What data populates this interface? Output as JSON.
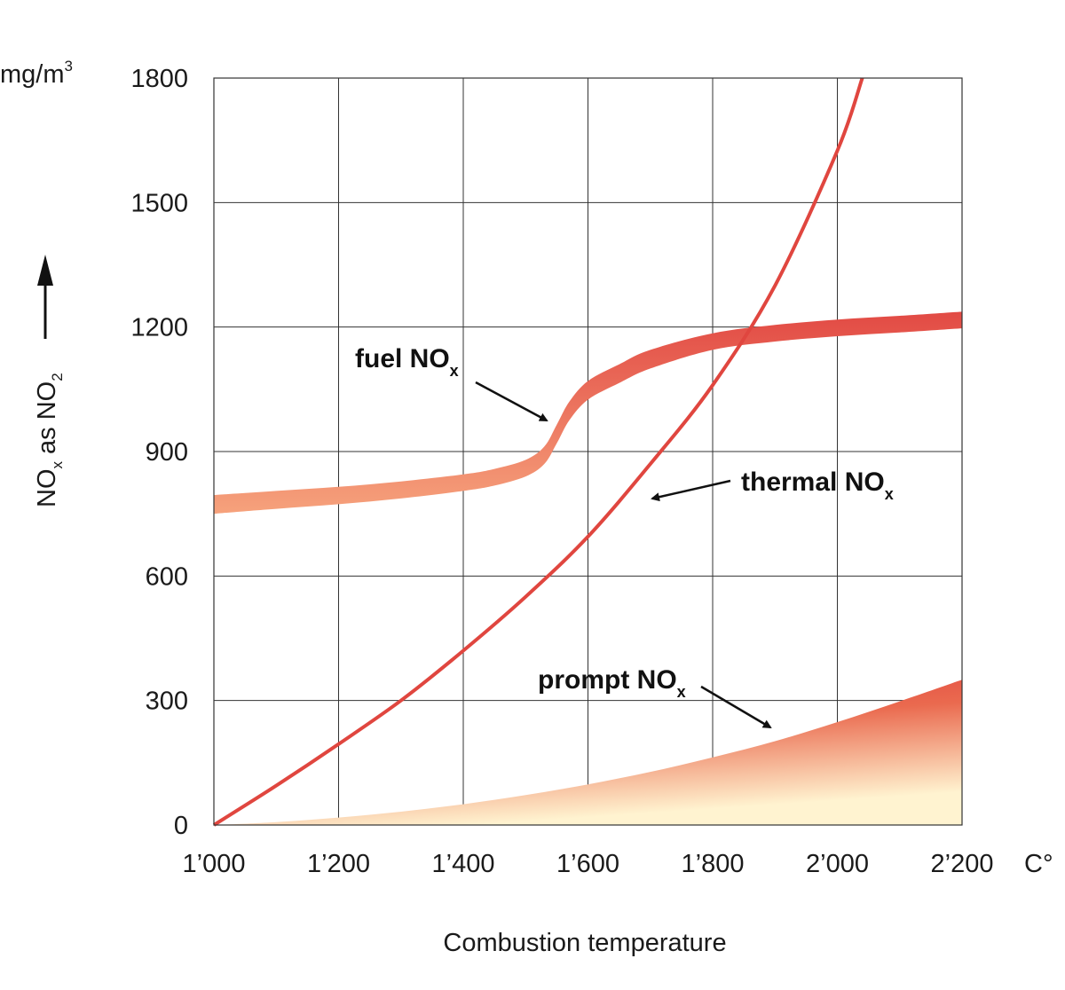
{
  "chart_data": {
    "type": "line",
    "x_ticks": [
      "1’000",
      "1’200",
      "1’400",
      "1’600",
      "1’800",
      "2’000",
      "2’200"
    ],
    "x_unit": "C°",
    "xlabel": "Combustion temperature",
    "xlim": [
      1000,
      2200
    ],
    "y_ticks": [
      "0",
      "300",
      "600",
      "900",
      "1200",
      "1500",
      "1800"
    ],
    "y_unit": "mg/m",
    "y_unit_sup": "3",
    "ylabel_main": "NO",
    "ylabel_sub1": "x",
    "ylabel_mid": " as NO",
    "ylabel_sub2": "2",
    "ylim": [
      0,
      1800
    ],
    "grid": true,
    "colors": {
      "line": "#e0463f",
      "band_dark": "#e24a44",
      "band_light": "#f4a07a",
      "fill_top": "#e03a3a",
      "fill_bottom": "#fff3d0",
      "arrow": "#111111"
    },
    "series": [
      {
        "name": "thermal NO",
        "name_sub": "x",
        "kind": "line",
        "x": [
          1000,
          1100,
          1200,
          1300,
          1400,
          1500,
          1600,
          1700,
          1800,
          1900,
          2000,
          2040
        ],
        "y": [
          0,
          95,
          195,
          300,
          420,
          550,
          695,
          870,
          1060,
          1300,
          1625,
          1800
        ]
      },
      {
        "name": "fuel NO",
        "name_sub": "x",
        "kind": "band",
        "x": [
          1000,
          1100,
          1200,
          1300,
          1400,
          1450,
          1500,
          1530,
          1550,
          1570,
          1600,
          1650,
          1700,
          1800,
          1900,
          2000,
          2100,
          2200
        ],
        "upper": [
          795,
          805,
          815,
          828,
          845,
          858,
          880,
          912,
          965,
          1020,
          1070,
          1110,
          1145,
          1185,
          1205,
          1218,
          1227,
          1237
        ],
        "lower": [
          750,
          762,
          773,
          787,
          805,
          818,
          840,
          870,
          920,
          975,
          1025,
          1065,
          1100,
          1145,
          1165,
          1178,
          1187,
          1197
        ]
      },
      {
        "name": "prompt NO",
        "name_sub": "x",
        "kind": "area",
        "x": [
          1000,
          1100,
          1200,
          1300,
          1400,
          1500,
          1600,
          1700,
          1800,
          1900,
          2000,
          2100,
          2200
        ],
        "y": [
          0,
          7,
          18,
          32,
          50,
          72,
          98,
          128,
          163,
          202,
          248,
          298,
          350
        ]
      }
    ]
  }
}
